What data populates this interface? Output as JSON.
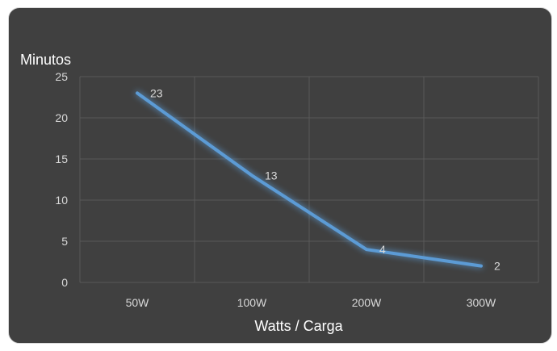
{
  "chart_data": {
    "type": "line",
    "title": "",
    "ylabel": "Minutos",
    "xlabel": "Watts / Carga",
    "categories": [
      "50W",
      "100W",
      "200W",
      "300W"
    ],
    "series": [
      {
        "values": [
          23,
          13,
          4,
          2
        ],
        "color": "#5b9bd5"
      }
    ],
    "ylim": [
      0,
      25
    ],
    "yticks": [
      0,
      5,
      10,
      15,
      20,
      25
    ],
    "grid": true,
    "legend": "none",
    "data_labels": [
      "23",
      "13",
      "4",
      "2"
    ]
  },
  "colors": {
    "background": "#404040",
    "grid": "#595959",
    "line": "#5b9bd5",
    "text": "#d9d9d9"
  }
}
